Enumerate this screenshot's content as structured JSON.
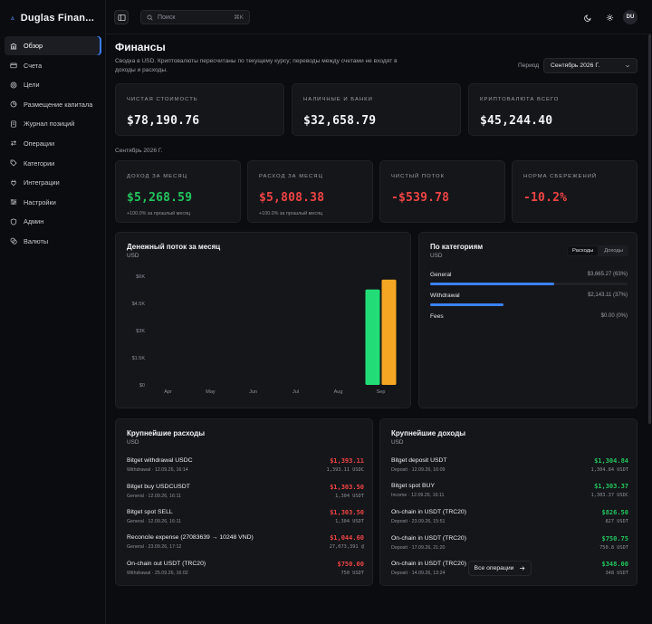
{
  "brand": {
    "name": "Duglas Finan..."
  },
  "sidebar": {
    "items": [
      {
        "label": "Обзор",
        "icon": "bank-icon"
      },
      {
        "label": "Счета",
        "icon": "wallet-icon"
      },
      {
        "label": "Цели",
        "icon": "target-icon"
      },
      {
        "label": "Размещение капитала",
        "icon": "pie-icon"
      },
      {
        "label": "Журнал позиций",
        "icon": "journal-icon"
      },
      {
        "label": "Операции",
        "icon": "transfer-icon"
      },
      {
        "label": "Категории",
        "icon": "tag-icon"
      },
      {
        "label": "Интеграции",
        "icon": "plug-icon"
      },
      {
        "label": "Настройки",
        "icon": "sliders-icon"
      },
      {
        "label": "Админ",
        "icon": "shield-icon"
      },
      {
        "label": "Валюты",
        "icon": "coins-icon"
      }
    ]
  },
  "topbar": {
    "search_placeholder": "Поиск",
    "search_shortcut": "⌘K",
    "avatar_initials": "DU"
  },
  "page": {
    "title": "Финансы",
    "subtitle": "Сводка в USD. Криптовалюты пересчитаны по текущему курсу; переводы между счетами не входят в доходы и расходы.",
    "period_label": "Период",
    "period_value": "Сентябрь 2026 Г."
  },
  "summary": [
    {
      "label": "Чистая стоимость",
      "value": "$78,190.76"
    },
    {
      "label": "Наличные и банки",
      "value": "$32,658.79"
    },
    {
      "label": "Криптовалюта всего",
      "value": "$45,244.40"
    }
  ],
  "month_label": "Сентябрь 2026 Г.",
  "monthly": [
    {
      "label": "Доход за месяц",
      "value": "$5,268.59",
      "note": "+100.0% за прошлый месяц",
      "tone": "green"
    },
    {
      "label": "Расход за месяц",
      "value": "$5,808.38",
      "note": "+100.0% за прошлый месяц",
      "tone": "red"
    },
    {
      "label": "Чистый поток",
      "value": "-$539.78",
      "note": "",
      "tone": "red"
    },
    {
      "label": "Норма сбережений",
      "value": "-10.2%",
      "note": "",
      "tone": "red"
    }
  ],
  "cashflow": {
    "title": "Денежный поток за месяц",
    "unit": "USD"
  },
  "chart_data": {
    "type": "bar",
    "categories": [
      "Apr",
      "May",
      "Jun",
      "Jul",
      "Aug",
      "Sep"
    ],
    "y_tick_labels": [
      "$0",
      "$1.5K",
      "$3K",
      "$4.5K",
      "$6K"
    ],
    "ylim": [
      0,
      6000
    ],
    "grid": false,
    "series": [
      {
        "values": [
          0,
          0,
          0,
          0,
          0,
          5268.59
        ],
        "color": "#22dd77"
      },
      {
        "values": [
          0,
          0,
          0,
          0,
          0,
          5808.38
        ],
        "color": "#f5a623"
      }
    ]
  },
  "categories_panel": {
    "title": "По категориям",
    "unit": "USD",
    "toggle": [
      "Расходы",
      "Доходы"
    ],
    "items": [
      {
        "name": "General",
        "amount": "$3,665.27 (63%)",
        "share": 0.63
      },
      {
        "name": "Withdrawal",
        "amount": "$2,143.11 (37%)",
        "share": 0.37
      },
      {
        "name": "Fees",
        "amount": "$0.00 (0%)",
        "share": 0
      }
    ]
  },
  "expenses": {
    "title": "Крупнейшие расходы",
    "unit": "USD",
    "items": [
      {
        "title": "Bitget withdrawal USDC",
        "meta": "Withdrawal · 12.09.26, 16:14",
        "amount": "$1,393.11",
        "sub": "1,393.11 USDC"
      },
      {
        "title": "Bitget buy USDCUSDT",
        "meta": "General · 12.09.26, 16:11",
        "amount": "$1,303.50",
        "sub": "1,304 USDT"
      },
      {
        "title": "Bitget spot SELL",
        "meta": "General · 12.09.26, 16:11",
        "amount": "$1,303.50",
        "sub": "1,304 USDT"
      },
      {
        "title": "Reconcile expense (27083639 → 10248 VND)",
        "meta": "General · 23.09.26, 17:12",
        "amount": "$1,044.60",
        "sub": "27,073,391 ₫"
      },
      {
        "title": "On-chain out USDT (TRC20)",
        "meta": "Withdrawal · 25.09.26, 16:02",
        "amount": "$750.00",
        "sub": "750 USDT"
      }
    ]
  },
  "income": {
    "title": "Крупнейшие доходы",
    "unit": "USD",
    "items": [
      {
        "title": "Bitget deposit USDT",
        "meta": "Deposit · 12.09.26, 16:09",
        "amount": "$1,304.84",
        "sub": "1,304.84 USDT"
      },
      {
        "title": "Bitget spot BUY",
        "meta": "Income · 12.09.26, 16:11",
        "amount": "$1,303.37",
        "sub": "1,303.37 USDC"
      },
      {
        "title": "On-chain in USDT (TRC20)",
        "meta": "Deposit · 23.09.26, 15:51",
        "amount": "$826.50",
        "sub": "827 USDT"
      },
      {
        "title": "On-chain in USDT (TRC20)",
        "meta": "Deposit · 17.09.26, 21:20",
        "amount": "$750.75",
        "sub": "750.8 USDT"
      },
      {
        "title": "On-chain in USDT (TRC20)",
        "meta": "Deposit · 14.09.26, 13:24",
        "amount": "$348.00",
        "sub": "348 USDT"
      }
    ]
  },
  "all_operations_label": "Все операции"
}
